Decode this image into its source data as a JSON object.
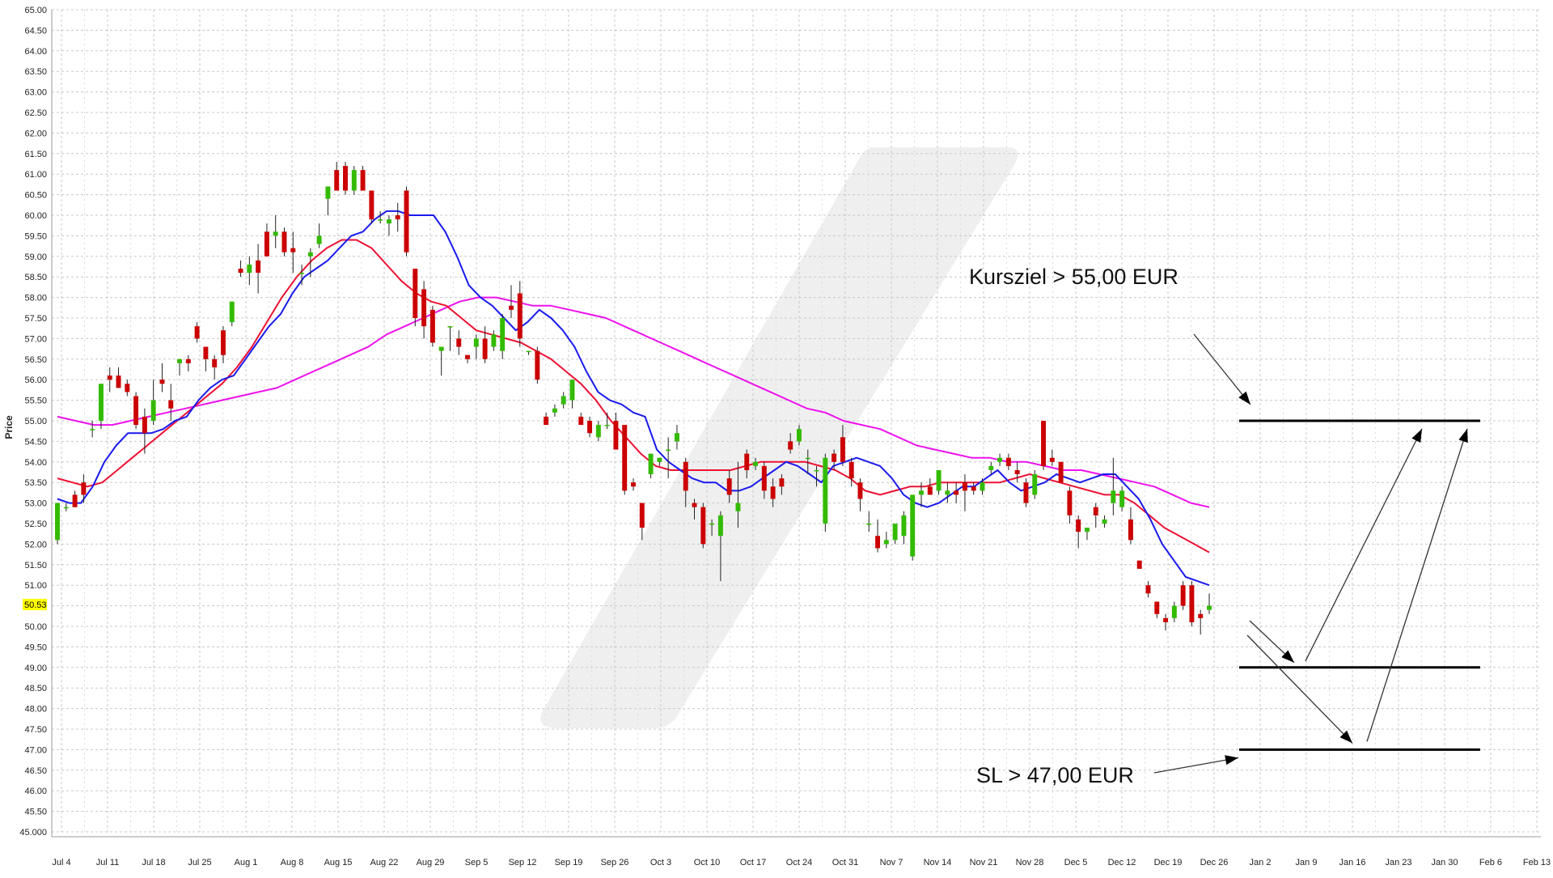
{
  "chart_data": {
    "type": "candlestick",
    "title": "",
    "xlabel": "",
    "ylabel": "Price",
    "ylim": [
      45.0,
      65.0
    ],
    "ytick_step": 0.5,
    "grid": true,
    "x_ticks": [
      "Jul 4",
      "Jul 11",
      "Jul 18",
      "Jul 25",
      "Aug 1",
      "Aug 8",
      "Aug 15",
      "Aug 22",
      "Aug 29",
      "Sep 5",
      "Sep 12",
      "Sep 19",
      "Sep 26",
      "Oct 3",
      "Oct 10",
      "Oct 17",
      "Oct 24",
      "Oct 31",
      "Nov 7",
      "Nov 14",
      "Nov 21",
      "Nov 28",
      "Dec 5",
      "Dec 12",
      "Dec 19",
      "Dec 26",
      "Jan 2",
      "Jan 9",
      "Jan 16",
      "Jan 23",
      "Jan 30",
      "Feb 6",
      "Feb 13"
    ],
    "last_price": "50.53",
    "colors": {
      "up": "#33bb00",
      "down": "#cc0000",
      "ma_fast": "#1a1aee",
      "ma_mid": "#ee1133",
      "ma_slow": "#ee11ee",
      "highlight": "#ffff00",
      "grid": "#c8c8c8"
    },
    "candles": [
      [
        52.1,
        53.0,
        52.0,
        53.0
      ],
      [
        52.9,
        53.0,
        52.8,
        52.9
      ],
      [
        53.2,
        53.3,
        52.9,
        52.9
      ],
      [
        53.5,
        53.7,
        53.0,
        53.2
      ],
      [
        54.8,
        55.0,
        54.6,
        54.8
      ],
      [
        55.0,
        55.9,
        54.8,
        55.9
      ],
      [
        56.1,
        56.3,
        55.7,
        56.0
      ],
      [
        56.1,
        56.3,
        55.8,
        55.8
      ],
      [
        55.9,
        56.0,
        55.6,
        55.7
      ],
      [
        55.6,
        55.7,
        54.8,
        54.9
      ],
      [
        55.1,
        55.3,
        54.2,
        54.7
      ],
      [
        55.0,
        56.0,
        54.9,
        55.5
      ],
      [
        56.0,
        56.4,
        55.7,
        55.9
      ],
      [
        55.5,
        55.9,
        55.0,
        55.3
      ],
      [
        56.4,
        56.5,
        56.1,
        56.5
      ],
      [
        56.5,
        56.6,
        56.2,
        56.4
      ],
      [
        57.3,
        57.4,
        56.9,
        57.0
      ],
      [
        56.8,
        56.8,
        56.2,
        56.5
      ],
      [
        56.5,
        56.6,
        56.0,
        56.3
      ],
      [
        57.2,
        57.3,
        56.4,
        56.6
      ],
      [
        57.4,
        57.9,
        57.3,
        57.9
      ],
      [
        58.7,
        58.9,
        58.5,
        58.6
      ],
      [
        58.6,
        59.0,
        58.3,
        58.8
      ],
      [
        58.9,
        59.3,
        58.1,
        58.6
      ],
      [
        59.6,
        59.8,
        59.0,
        59.0
      ],
      [
        59.5,
        60.0,
        59.2,
        59.6
      ],
      [
        59.6,
        59.7,
        59.0,
        59.1
      ],
      [
        59.2,
        59.6,
        58.6,
        59.1
      ],
      [
        58.6,
        58.8,
        58.3,
        58.6
      ],
      [
        59.0,
        59.2,
        58.5,
        59.1
      ],
      [
        59.3,
        59.8,
        59.2,
        59.5
      ],
      [
        60.4,
        60.7,
        60.0,
        60.7
      ],
      [
        61.1,
        61.3,
        60.6,
        60.6
      ],
      [
        61.2,
        61.3,
        60.5,
        60.6
      ],
      [
        60.6,
        61.2,
        60.5,
        61.1
      ],
      [
        61.1,
        61.2,
        60.6,
        60.6
      ],
      [
        60.6,
        60.6,
        59.8,
        59.9
      ],
      [
        59.9,
        60.1,
        59.8,
        59.9
      ],
      [
        59.8,
        60.0,
        59.5,
        59.9
      ],
      [
        60.0,
        60.3,
        59.6,
        59.9
      ],
      [
        60.6,
        60.7,
        59.0,
        59.1
      ],
      [
        58.7,
        58.7,
        57.3,
        57.5
      ],
      [
        58.2,
        58.4,
        57.0,
        57.3
      ],
      [
        57.7,
        57.8,
        56.8,
        56.9
      ],
      [
        56.7,
        56.8,
        56.1,
        56.8
      ],
      [
        57.3,
        57.3,
        56.7,
        57.3
      ],
      [
        57.0,
        57.2,
        56.6,
        56.8
      ],
      [
        56.6,
        56.6,
        56.4,
        56.5
      ],
      [
        56.8,
        57.1,
        56.5,
        57.0
      ],
      [
        57.0,
        57.3,
        56.4,
        56.5
      ],
      [
        56.8,
        57.2,
        56.7,
        57.1
      ],
      [
        56.7,
        57.6,
        56.5,
        57.5
      ],
      [
        57.8,
        58.3,
        57.5,
        57.7
      ],
      [
        58.1,
        58.4,
        56.8,
        57.0
      ],
      [
        56.7,
        56.7,
        56.6,
        56.7
      ],
      [
        56.7,
        56.8,
        55.9,
        56.0
      ],
      [
        55.1,
        55.2,
        54.9,
        54.9
      ],
      [
        55.2,
        55.4,
        55.1,
        55.3
      ],
      [
        55.4,
        55.7,
        55.3,
        55.6
      ],
      [
        55.5,
        56.0,
        55.3,
        56.0
      ],
      [
        55.1,
        55.2,
        54.9,
        54.9
      ],
      [
        55.0,
        55.1,
        54.6,
        54.7
      ],
      [
        54.6,
        55.0,
        54.5,
        54.9
      ],
      [
        54.9,
        55.2,
        54.8,
        54.9
      ],
      [
        55.0,
        55.2,
        54.3,
        54.3
      ],
      [
        54.9,
        54.9,
        53.2,
        53.3
      ],
      [
        53.5,
        53.6,
        53.3,
        53.4
      ],
      [
        53.0,
        53.0,
        52.1,
        52.4
      ],
      [
        53.7,
        54.2,
        53.6,
        54.2
      ],
      [
        54.0,
        54.1,
        53.9,
        54.1
      ],
      [
        54.3,
        54.6,
        53.6,
        54.3
      ],
      [
        54.5,
        54.9,
        54.3,
        54.7
      ],
      [
        54.0,
        54.1,
        52.9,
        53.3
      ],
      [
        53.0,
        53.1,
        52.6,
        52.9
      ],
      [
        52.9,
        53.0,
        51.9,
        52.0
      ],
      [
        52.5,
        52.6,
        52.2,
        52.5
      ],
      [
        52.2,
        52.8,
        51.1,
        52.7
      ],
      [
        53.6,
        53.8,
        53.0,
        53.2
      ],
      [
        52.8,
        54.0,
        52.4,
        53.0
      ],
      [
        54.2,
        54.3,
        53.6,
        53.8
      ],
      [
        53.9,
        54.1,
        53.8,
        54.0
      ],
      [
        53.9,
        54.0,
        53.1,
        53.3
      ],
      [
        53.4,
        53.6,
        52.9,
        53.1
      ],
      [
        53.6,
        53.7,
        53.2,
        53.4
      ],
      [
        54.5,
        54.7,
        54.2,
        54.3
      ],
      [
        54.5,
        54.9,
        54.4,
        54.8
      ],
      [
        54.1,
        54.3,
        53.7,
        54.1
      ],
      [
        53.8,
        53.9,
        53.4,
        53.8
      ],
      [
        52.5,
        54.2,
        52.3,
        54.1
      ],
      [
        54.2,
        54.3,
        53.8,
        54.0
      ],
      [
        54.6,
        54.9,
        53.9,
        54.0
      ],
      [
        54.0,
        54.1,
        53.4,
        53.6
      ],
      [
        53.5,
        53.6,
        52.8,
        53.1
      ],
      [
        52.5,
        52.8,
        52.3,
        52.5
      ],
      [
        52.2,
        52.6,
        51.8,
        51.9
      ],
      [
        52.0,
        52.3,
        51.9,
        52.1
      ],
      [
        52.1,
        52.5,
        52.0,
        52.5
      ],
      [
        52.2,
        52.8,
        52.0,
        52.7
      ],
      [
        51.7,
        53.2,
        51.6,
        53.2
      ],
      [
        53.2,
        53.5,
        52.9,
        53.3
      ],
      [
        53.4,
        53.6,
        53.2,
        53.2
      ],
      [
        53.3,
        53.8,
        53.2,
        53.8
      ],
      [
        53.2,
        53.5,
        53.0,
        53.3
      ],
      [
        53.3,
        53.5,
        53.0,
        53.2
      ],
      [
        53.5,
        53.7,
        52.8,
        53.3
      ],
      [
        53.4,
        53.5,
        53.2,
        53.3
      ],
      [
        53.3,
        53.6,
        53.2,
        53.5
      ],
      [
        53.8,
        54.0,
        53.7,
        53.9
      ],
      [
        54.0,
        54.2,
        53.9,
        54.1
      ],
      [
        54.1,
        54.2,
        53.8,
        53.9
      ],
      [
        53.8,
        54.0,
        53.5,
        53.7
      ],
      [
        53.5,
        53.6,
        52.9,
        53.0
      ],
      [
        53.2,
        53.8,
        53.1,
        53.7
      ],
      [
        55.0,
        55.0,
        53.8,
        53.9
      ],
      [
        54.1,
        54.3,
        53.9,
        54.0
      ],
      [
        54.0,
        54.0,
        53.5,
        53.5
      ],
      [
        53.3,
        53.4,
        52.5,
        52.7
      ],
      [
        52.6,
        52.7,
        51.9,
        52.3
      ],
      [
        52.3,
        52.4,
        52.1,
        52.4
      ],
      [
        52.9,
        53.0,
        52.4,
        52.7
      ],
      [
        52.5,
        52.7,
        52.4,
        52.6
      ],
      [
        53.0,
        54.1,
        52.7,
        53.3
      ],
      [
        52.9,
        53.4,
        52.8,
        53.3
      ],
      [
        52.6,
        52.9,
        52.0,
        52.1
      ],
      [
        51.6,
        51.6,
        51.4,
        51.4
      ],
      [
        51.0,
        51.1,
        50.7,
        50.8
      ],
      [
        50.6,
        50.6,
        50.2,
        50.3
      ],
      [
        50.2,
        50.3,
        49.9,
        50.1
      ],
      [
        50.2,
        50.6,
        50.1,
        50.5
      ],
      [
        51.0,
        51.1,
        50.4,
        50.5
      ],
      [
        51.0,
        51.1,
        50.0,
        50.1
      ],
      [
        50.3,
        50.4,
        49.8,
        50.2
      ],
      [
        50.4,
        50.8,
        50.3,
        50.5
      ]
    ],
    "ma_fast": [
      53.1,
      53.0,
      53.0,
      53.4,
      54.0,
      54.4,
      54.7,
      54.7,
      54.7,
      54.8,
      55.0,
      55.1,
      55.5,
      55.8,
      56.0,
      56.1,
      56.5,
      56.9,
      57.3,
      57.6,
      58.1,
      58.5,
      58.7,
      58.9,
      59.2,
      59.5,
      59.6,
      59.9,
      60.1,
      60.1,
      60.0,
      60.0,
      60.0,
      59.6,
      59.0,
      58.3,
      58.0,
      57.8,
      57.5,
      57.2,
      57.4,
      57.7,
      57.5,
      57.2,
      56.8,
      56.2,
      55.7,
      55.5,
      55.4,
      55.2,
      55.1,
      54.3,
      54.0,
      53.8,
      53.6,
      53.5,
      53.5,
      53.3,
      53.3,
      53.4,
      53.6,
      53.8,
      54.0,
      53.9,
      53.7,
      53.5,
      53.9,
      54.0,
      54.1,
      54.0,
      53.9,
      53.6,
      53.2,
      53.0,
      52.9,
      53.0,
      53.2,
      53.4,
      53.4,
      53.6,
      53.8,
      53.5,
      53.3,
      53.4,
      53.5,
      53.7,
      53.6,
      53.5,
      53.6,
      53.7,
      53.7,
      53.4,
      53.1,
      52.6,
      52.0,
      51.6,
      51.2,
      51.1,
      51.0
    ],
    "ma_mid": [
      53.6,
      53.5,
      53.4,
      53.5,
      53.8,
      54.1,
      54.4,
      54.7,
      55.0,
      55.3,
      55.6,
      55.9,
      56.3,
      56.8,
      57.4,
      58.0,
      58.5,
      58.9,
      59.2,
      59.4,
      59.4,
      59.2,
      58.8,
      58.4,
      58.1,
      57.9,
      57.8,
      57.5,
      57.2,
      57.1,
      57.0,
      56.9,
      56.7,
      56.5,
      56.2,
      55.9,
      55.5,
      55.0,
      54.6,
      54.2,
      53.9,
      53.8,
      53.8,
      53.8,
      53.8,
      53.8,
      53.9,
      54.0,
      54.0,
      54.0,
      54.0,
      53.9,
      53.8,
      53.6,
      53.3,
      53.2,
      53.3,
      53.4,
      53.4,
      53.5,
      53.5,
      53.5,
      53.5,
      53.5,
      53.6,
      53.7,
      53.6,
      53.5,
      53.4,
      53.3,
      53.2,
      53.2,
      53.0,
      52.7,
      52.4,
      52.2,
      52.0,
      51.8
    ],
    "ma_slow": [
      55.1,
      55.0,
      54.9,
      54.9,
      55.0,
      55.1,
      55.2,
      55.3,
      55.4,
      55.5,
      55.6,
      55.7,
      55.8,
      56.0,
      56.2,
      56.4,
      56.6,
      56.8,
      57.1,
      57.3,
      57.5,
      57.7,
      57.9,
      58.0,
      58.0,
      57.9,
      57.8,
      57.8,
      57.7,
      57.6,
      57.5,
      57.3,
      57.1,
      56.9,
      56.7,
      56.5,
      56.3,
      56.1,
      55.9,
      55.7,
      55.5,
      55.3,
      55.2,
      55.0,
      54.9,
      54.8,
      54.6,
      54.4,
      54.3,
      54.2,
      54.1,
      54.1,
      54.0,
      54.0,
      53.9,
      53.8,
      53.8,
      53.7,
      53.6,
      53.5,
      53.4,
      53.2,
      53.0,
      52.9
    ],
    "annotations": {
      "target_label": "Kursziel > 55,00 EUR",
      "sl_label": "SL > 47,00 EUR",
      "target_level": 55.0,
      "entry_level": 49.0,
      "sl_level": 47.0
    }
  }
}
